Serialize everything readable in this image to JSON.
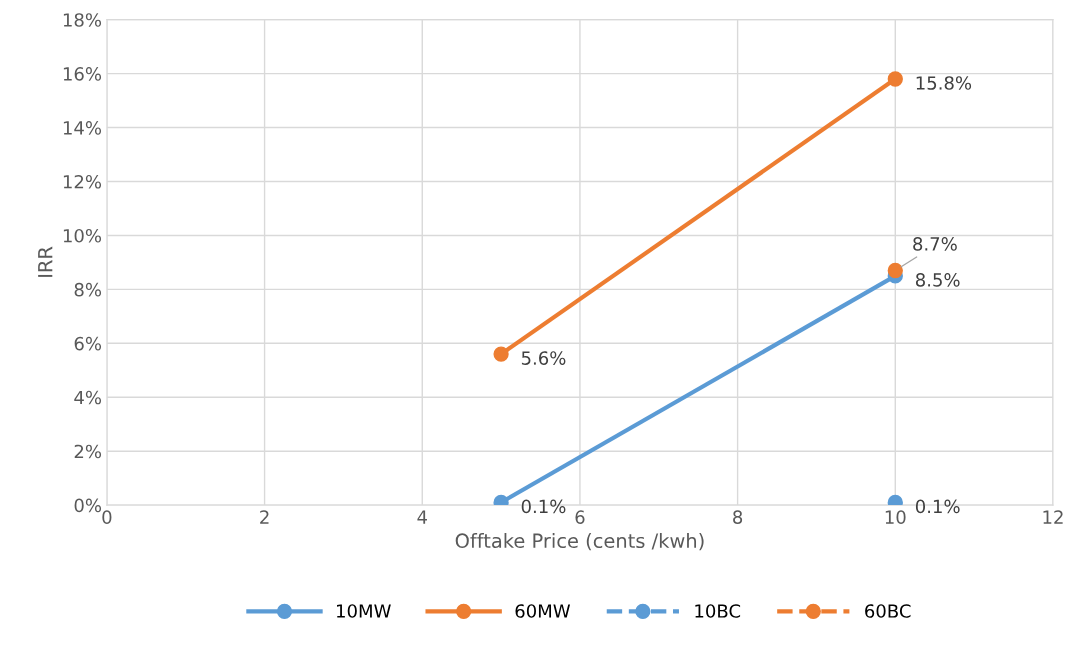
{
  "chart_data": {
    "type": "line",
    "xlabel": "Offtake Price (cents /kwh)",
    "ylabel": "IRR",
    "x": [
      5,
      10
    ],
    "xlim": [
      0,
      12
    ],
    "xticks": [
      0,
      2,
      4,
      6,
      8,
      10,
      12
    ],
    "ylim": [
      0,
      18
    ],
    "yticks": [
      {
        "value": 0,
        "label": "0%"
      },
      {
        "value": 2,
        "label": "2%"
      },
      {
        "value": 4,
        "label": "4%"
      },
      {
        "value": 6,
        "label": "6%"
      },
      {
        "value": 8,
        "label": "8%"
      },
      {
        "value": 10,
        "label": "10%"
      },
      {
        "value": 12,
        "label": "12%"
      },
      {
        "value": 14,
        "label": "14%"
      },
      {
        "value": 16,
        "label": "16%"
      },
      {
        "value": 18,
        "label": "18%"
      }
    ],
    "grid": true,
    "legend": "bottom",
    "marker": "circle",
    "series": [
      {
        "name": "10MW",
        "color": "#5b9bd5",
        "values": [
          0.1,
          8.5
        ],
        "value_labels": [
          "0.1%",
          "8.5%"
        ],
        "line_style": "solid"
      },
      {
        "name": "60MW",
        "color": "#ed7d31",
        "values": [
          5.6,
          15.8
        ],
        "value_labels": [
          "5.6%",
          "15.8%"
        ],
        "line_style": "solid"
      },
      {
        "name": "10BC",
        "color": "#5b9bd5",
        "values": [
          null,
          0.1
        ],
        "value_labels": [
          null,
          "0.1%"
        ],
        "line_style": "dashed"
      },
      {
        "name": "60BC",
        "color": "#ed7d31",
        "values": [
          null,
          8.7
        ],
        "value_labels": [
          null,
          "8.7%"
        ],
        "line_style": "dashed"
      }
    ]
  }
}
